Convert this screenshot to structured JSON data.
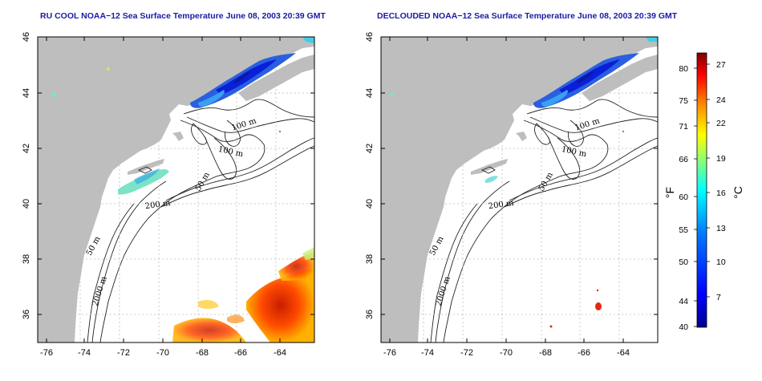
{
  "panels": [
    {
      "title": "RU COOL NOAA−12 Sea Surface Temperature June 08, 2003 20:39 GMT",
      "x_ticks": [
        "-76",
        "-74",
        "-72",
        "-70",
        "-68",
        "-66",
        "-64"
      ],
      "y_ticks": [
        "46",
        "44",
        "42",
        "40",
        "38",
        "36"
      ],
      "contour_labels": [
        "100 m",
        "100 m",
        "50 m",
        "200 m",
        "50 m",
        "2000 m"
      ]
    },
    {
      "title": "DECLOUDED NOAA−12 Sea Surface Temperature June 08, 2003 20:39 GMT",
      "x_ticks": [
        "-76",
        "-74",
        "-72",
        "-70",
        "-68",
        "-66",
        "-64"
      ],
      "y_ticks": [
        "46",
        "44",
        "42",
        "40",
        "38",
        "36"
      ],
      "contour_labels": [
        "100 m",
        "100 m",
        "50 m",
        "200 m",
        "50 m",
        "2000 m"
      ]
    }
  ],
  "colorbar": {
    "fahrenheit_ticks": [
      "80",
      "75",
      "71",
      "66",
      "60",
      "55",
      "50",
      "44",
      "40"
    ],
    "celsius_ticks": [
      "27",
      "24",
      "22",
      "19",
      "16",
      "13",
      "10",
      "7"
    ],
    "unit_f": "°F",
    "unit_c": "°C",
    "colors": [
      "#00008f",
      "#0000ff",
      "#0080ff",
      "#00ffff",
      "#80ff80",
      "#ffff00",
      "#ff8000",
      "#ff0000",
      "#800000"
    ]
  }
}
